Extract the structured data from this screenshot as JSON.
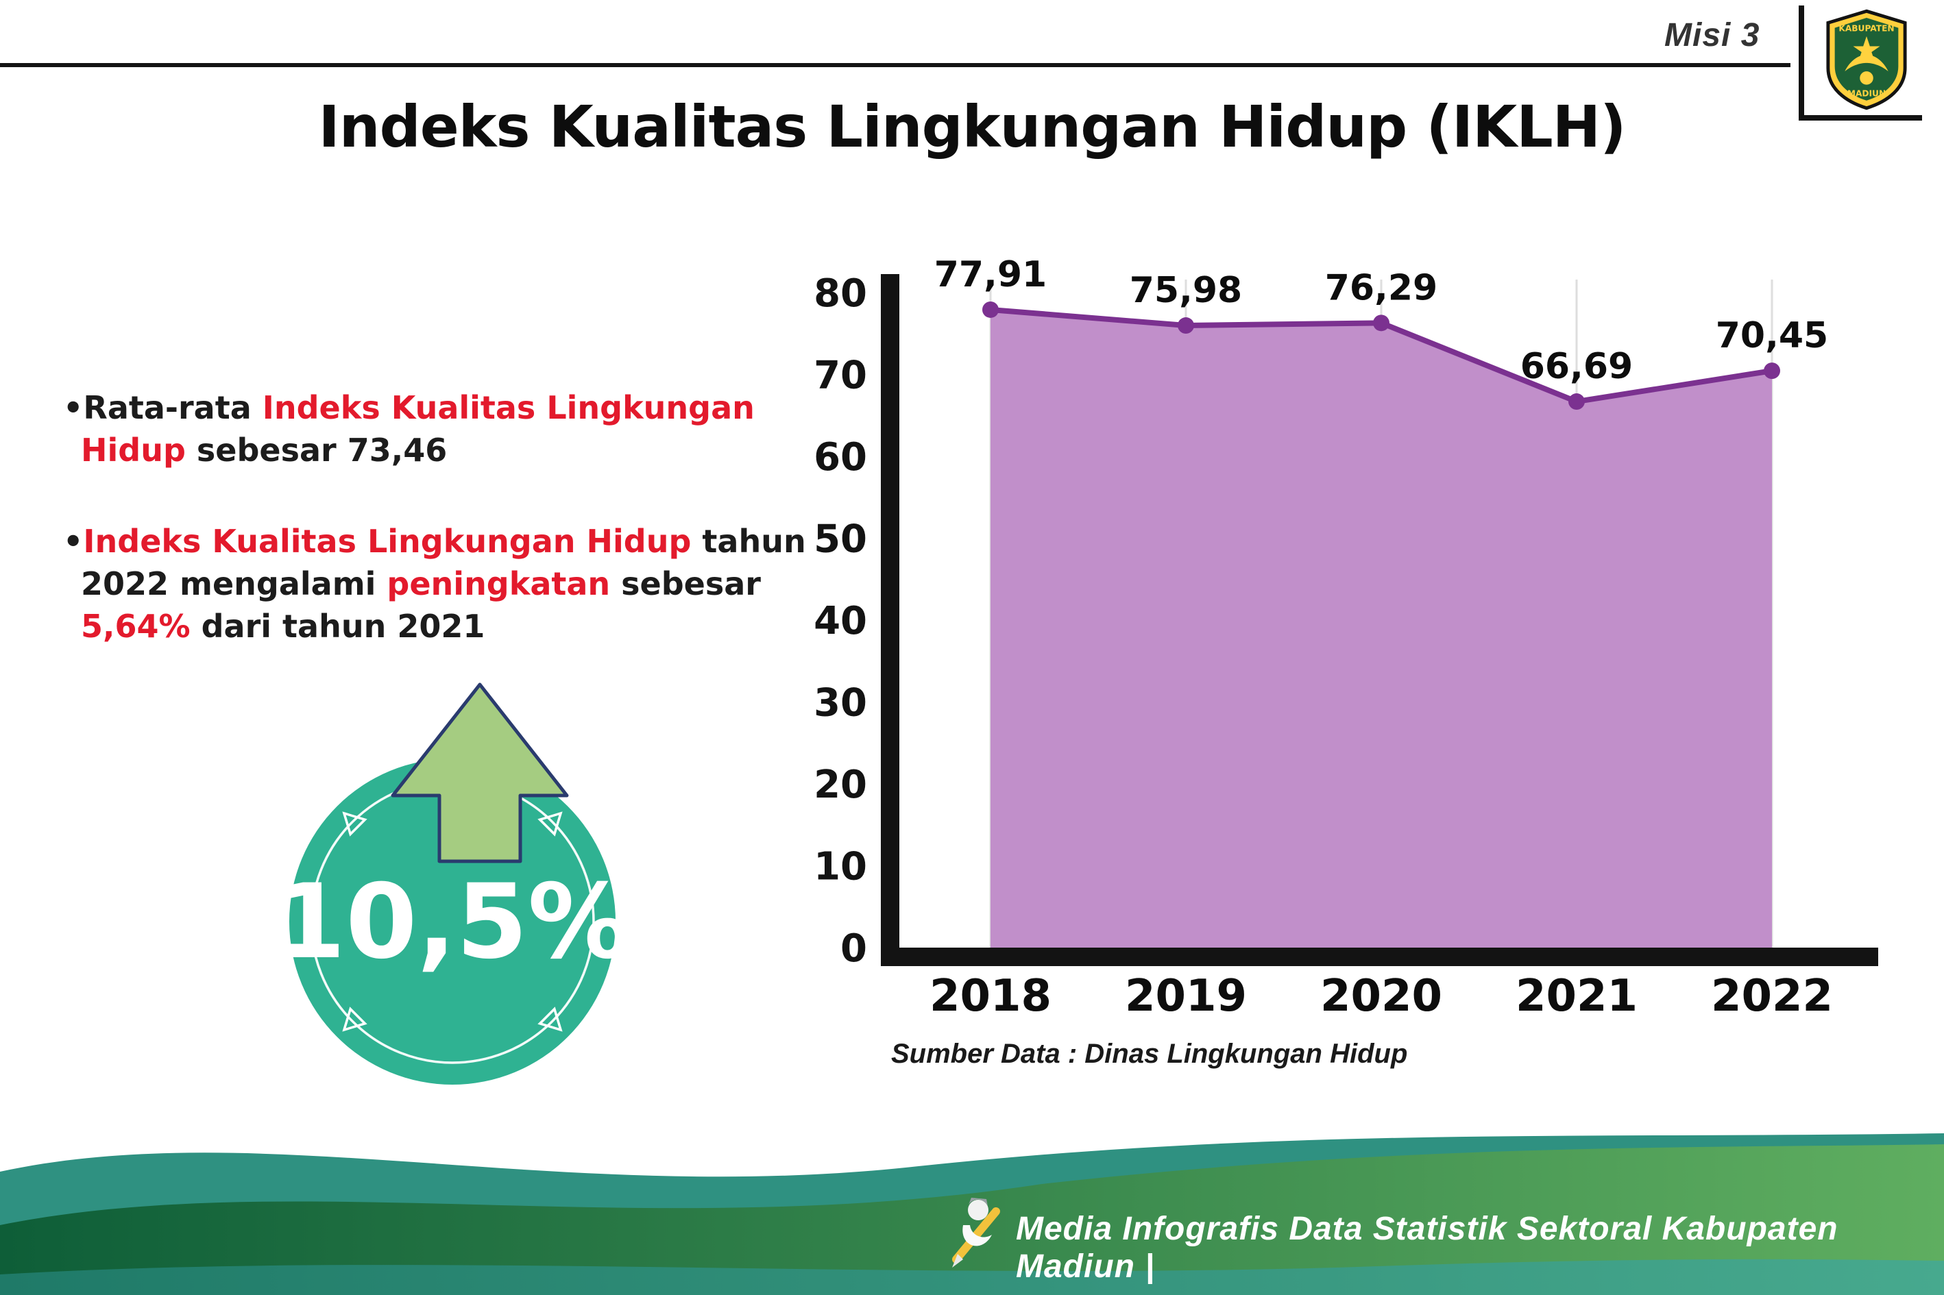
{
  "header": {
    "misi_label": "Misi 3",
    "title": "Indeks Kualitas Lingkungan Hidup (IKLH)",
    "logo": {
      "name": "Lambang Kabupaten Madiun",
      "text_top": "KABUPATEN",
      "text_bottom": "MADIUN"
    }
  },
  "bullets": [
    {
      "segments": [
        {
          "t": "Rata-rata ",
          "red": false
        },
        {
          "t": "Indeks Kualitas Lingkungan Hidup",
          "red": true
        },
        {
          "t": " sebesar 73,46",
          "red": false
        }
      ]
    },
    {
      "segments": [
        {
          "t": "Indeks Kualitas Lingkungan Hidup",
          "red": true
        },
        {
          "t": " tahun 2022 mengalami ",
          "red": false
        },
        {
          "t": "peningkatan",
          "red": true
        },
        {
          "t": " sebesar ",
          "red": false
        },
        {
          "t": "5,64%",
          "red": true
        },
        {
          "t": " dari tahun 2021",
          "red": false
        }
      ]
    }
  ],
  "badge": {
    "value": "10,5%"
  },
  "chart_data": {
    "type": "area",
    "categories": [
      "2018",
      "2019",
      "2020",
      "2021",
      "2022"
    ],
    "values": [
      77.91,
      75.98,
      76.29,
      66.69,
      70.45
    ],
    "point_labels": [
      "77,91",
      "75,98",
      "76,29",
      "66,69",
      "70,45"
    ],
    "ylim": [
      0,
      80
    ],
    "yticks": [
      0,
      10,
      20,
      30,
      40,
      50,
      60,
      70,
      80
    ],
    "grid": "vertical-light",
    "legend": "none",
    "area_color": "#c18fca",
    "line_color": "#7b3190",
    "source": "Sumber Data : Dinas Lingkungan Hidup"
  },
  "footer": {
    "credit": "Media Infografis Data Statistik Sektoral Kabupaten Madiun |"
  },
  "colors": {
    "highlight_red": "#e31a2c",
    "badge_teal": "#2fb292",
    "arrow_green": "#a5cc81",
    "footer_green_dark": "#0e5e38",
    "footer_green_light": "#5fae60",
    "footer_teal": "#2f9181"
  }
}
